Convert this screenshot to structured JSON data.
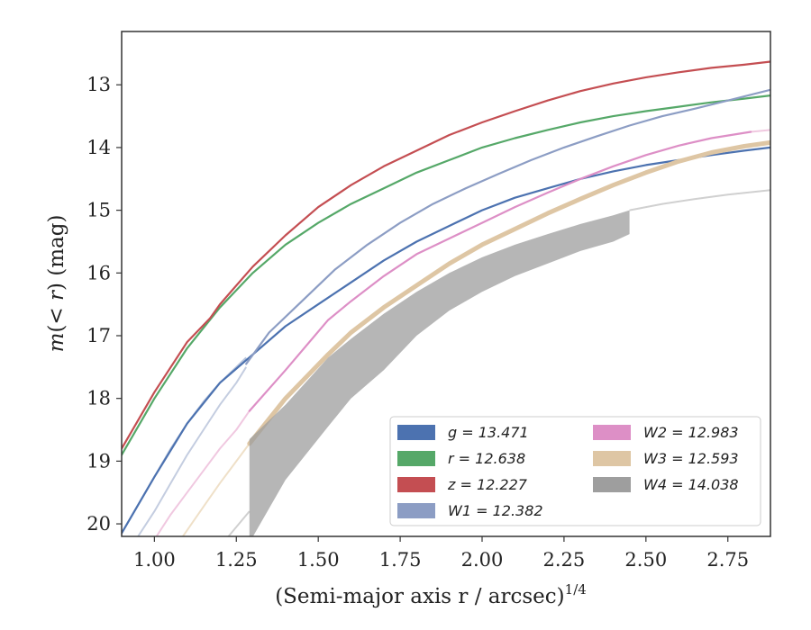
{
  "chart_data": {
    "type": "line",
    "xlabel": "(Semi-major axis r / arcsec)",
    "xlabel_exponent": "1/4",
    "ylabel": "m(< r) (mag)",
    "xlim": [
      0.9,
      2.88
    ],
    "ylim": [
      20.2,
      12.15
    ],
    "y_inverted": true,
    "xticks": [
      {
        "v": 1.0,
        "label": "1.00"
      },
      {
        "v": 1.25,
        "label": "1.25"
      },
      {
        "v": 1.5,
        "label": "1.50"
      },
      {
        "v": 1.75,
        "label": "1.75"
      },
      {
        "v": 2.0,
        "label": "2.00"
      },
      {
        "v": 2.25,
        "label": "2.25"
      },
      {
        "v": 2.5,
        "label": "2.50"
      },
      {
        "v": 2.75,
        "label": "2.75"
      }
    ],
    "yticks": [
      {
        "v": 13,
        "label": "13"
      },
      {
        "v": 14,
        "label": "14"
      },
      {
        "v": 15,
        "label": "15"
      },
      {
        "v": 16,
        "label": "16"
      },
      {
        "v": 17,
        "label": "17"
      },
      {
        "v": 18,
        "label": "18"
      },
      {
        "v": 19,
        "label": "19"
      },
      {
        "v": 20,
        "label": "20"
      }
    ],
    "grid": false,
    "legend_position": "lower-right",
    "legend_columns": 2,
    "series": [
      {
        "name": "g",
        "legend_label": "g = 13.471",
        "color": "#4c72b0",
        "faint_color": "#b7c4dc",
        "faint_x": [
          0.9,
          0.95,
          1.0,
          1.05,
          1.1,
          1.15,
          1.2,
          1.25,
          1.28
        ],
        "faint_y": [
          20.15,
          19.7,
          19.25,
          18.8,
          18.4,
          18.05,
          17.75,
          17.5,
          17.35
        ],
        "x": [
          0.9,
          1.0,
          1.1,
          1.2,
          1.3,
          1.4,
          1.5,
          1.6,
          1.7,
          1.8,
          1.9,
          2.0,
          2.1,
          2.2,
          2.3,
          2.4,
          2.5,
          2.6,
          2.7,
          2.8,
          2.88
        ],
        "y": [
          20.15,
          19.25,
          18.4,
          17.75,
          17.3,
          16.85,
          16.5,
          16.15,
          15.8,
          15.5,
          15.25,
          15.0,
          14.8,
          14.65,
          14.5,
          14.38,
          14.28,
          14.2,
          14.12,
          14.05,
          14.0
        ]
      },
      {
        "name": "r",
        "legend_label": "r = 12.638",
        "color": "#55a868",
        "x": [
          0.9,
          1.0,
          1.1,
          1.2,
          1.3,
          1.4,
          1.5,
          1.6,
          1.7,
          1.8,
          1.9,
          2.0,
          2.1,
          2.2,
          2.3,
          2.4,
          2.5,
          2.6,
          2.7,
          2.8,
          2.88
        ],
        "y": [
          18.9,
          18.0,
          17.2,
          16.55,
          16.0,
          15.55,
          15.2,
          14.9,
          14.65,
          14.4,
          14.2,
          14.0,
          13.85,
          13.72,
          13.6,
          13.5,
          13.42,
          13.35,
          13.28,
          13.22,
          13.17
        ]
      },
      {
        "name": "z",
        "legend_label": "z = 12.227",
        "color": "#c44e52",
        "x": [
          0.9,
          1.0,
          1.1,
          1.17,
          1.2,
          1.3,
          1.4,
          1.5,
          1.6,
          1.7,
          1.8,
          1.9,
          2.0,
          2.1,
          2.2,
          2.3,
          2.4,
          2.5,
          2.6,
          2.7,
          2.8,
          2.88
        ],
        "y": [
          18.8,
          17.9,
          17.1,
          16.72,
          16.5,
          15.9,
          15.4,
          14.95,
          14.6,
          14.3,
          14.05,
          13.8,
          13.6,
          13.42,
          13.25,
          13.1,
          12.98,
          12.88,
          12.8,
          12.73,
          12.68,
          12.63
        ]
      },
      {
        "name": "W1",
        "legend_label": "W1 = 12.382",
        "color": "#8c9dc4",
        "faint_color": "#c4cde0",
        "faint_x": [
          0.95,
          1.0,
          1.05,
          1.1,
          1.15,
          1.2,
          1.25,
          1.28
        ],
        "faint_y": [
          20.2,
          19.8,
          19.35,
          18.9,
          18.5,
          18.1,
          17.75,
          17.5
        ],
        "x": [
          1.28,
          1.35,
          1.45,
          1.55,
          1.65,
          1.75,
          1.85,
          1.95,
          2.05,
          2.15,
          2.25,
          2.35,
          2.45,
          2.55,
          2.65,
          2.75,
          2.88
        ],
        "y": [
          17.45,
          16.95,
          16.45,
          15.95,
          15.55,
          15.2,
          14.9,
          14.65,
          14.42,
          14.2,
          14.0,
          13.82,
          13.65,
          13.5,
          13.38,
          13.25,
          13.08
        ]
      },
      {
        "name": "W2",
        "legend_label": "W2 = 12.983",
        "color": "#dd8fc6",
        "faint_color": "#f0c8e0",
        "faint_x": [
          1.0,
          1.05,
          1.1,
          1.15,
          1.2,
          1.25,
          1.29
        ],
        "faint_y": [
          20.25,
          19.85,
          19.5,
          19.15,
          18.8,
          18.5,
          18.2
        ],
        "x": [
          1.29,
          1.4,
          1.53,
          1.6,
          1.7,
          1.8,
          1.9,
          2.0,
          2.1,
          2.2,
          2.3,
          2.4,
          2.5,
          2.6,
          2.7,
          2.82
        ],
        "y": [
          18.2,
          17.55,
          16.75,
          16.45,
          16.05,
          15.7,
          15.45,
          15.2,
          14.95,
          14.72,
          14.5,
          14.3,
          14.12,
          13.97,
          13.85,
          13.75
        ],
        "faint_x2": [
          2.82,
          2.88
        ],
        "faint_y2": [
          13.75,
          13.72
        ]
      },
      {
        "name": "W3",
        "legend_label": "W3 = 12.593",
        "color": "#dec6a4",
        "faint_color": "#efe0c8",
        "faint_x": [
          1.08,
          1.12,
          1.16,
          1.2,
          1.25,
          1.29
        ],
        "faint_y": [
          20.25,
          19.95,
          19.65,
          19.35,
          19.0,
          18.72
        ],
        "x": [
          1.29,
          1.4,
          1.53,
          1.6,
          1.7,
          1.8,
          1.9,
          2.0,
          2.1,
          2.2,
          2.3,
          2.4,
          2.5,
          2.6,
          2.7,
          2.8,
          2.88
        ],
        "y": [
          18.72,
          18.0,
          17.3,
          16.95,
          16.55,
          16.2,
          15.85,
          15.55,
          15.3,
          15.05,
          14.82,
          14.6,
          14.4,
          14.22,
          14.08,
          13.98,
          13.92
        ],
        "band_halfwidth": 0.05
      },
      {
        "name": "W4",
        "legend_label": "W4 = 14.038",
        "color": "#9e9e9e",
        "faint_color": "#d0d0d0",
        "faint_x": [
          1.21,
          1.25,
          1.29
        ],
        "faint_y": [
          20.3,
          20.05,
          19.8
        ],
        "band_x": [
          1.29,
          1.4,
          1.53,
          1.6,
          1.7,
          1.8,
          1.9,
          2.0,
          2.1,
          2.2,
          2.3,
          2.4,
          2.45
        ],
        "band_upper": [
          18.65,
          18.1,
          17.35,
          17.05,
          16.65,
          16.3,
          16.0,
          15.75,
          15.55,
          15.38,
          15.22,
          15.08,
          15.0
        ],
        "band_lower": [
          20.3,
          19.3,
          18.45,
          18.0,
          17.55,
          17.0,
          16.6,
          16.3,
          16.05,
          15.85,
          15.65,
          15.5,
          15.38
        ],
        "faint_x2": [
          2.45,
          2.55,
          2.65,
          2.75,
          2.88
        ],
        "faint_y2": [
          15.0,
          14.9,
          14.82,
          14.75,
          14.68
        ]
      }
    ]
  }
}
